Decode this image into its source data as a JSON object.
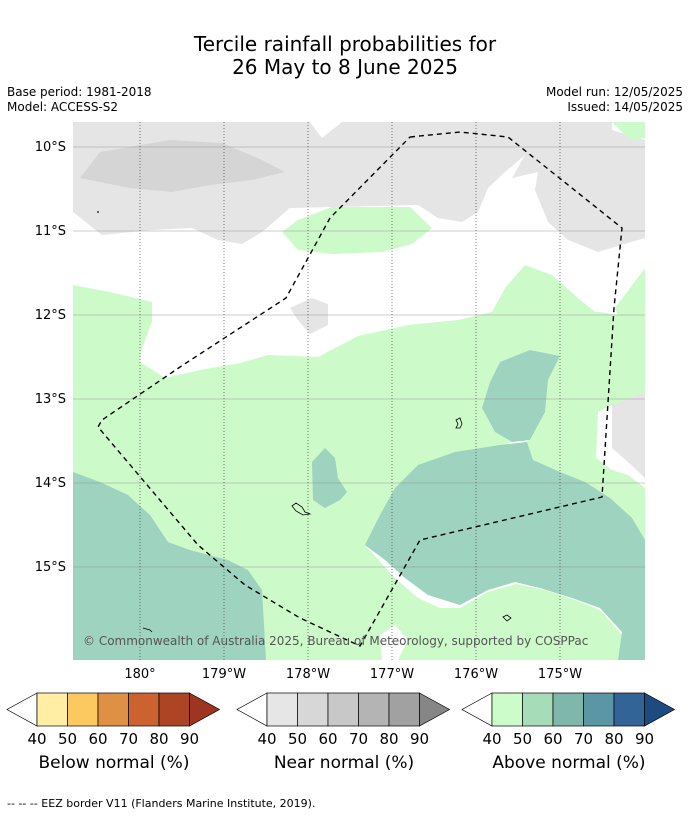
{
  "title": {
    "line1": "Tercile rainfall probabilities for",
    "line2": "26 May to 8 June 2025"
  },
  "meta": {
    "base_period": "Base period: 1981-2018",
    "model": "Model: ACCESS-S2",
    "model_run": "Model run: 12/05/2025",
    "issued": "Issued: 14/05/2025"
  },
  "map": {
    "lat_labels": [
      "10°S",
      "11°S",
      "12°S",
      "13°S",
      "14°S",
      "15°S"
    ],
    "lon_labels": [
      "180°",
      "179°W",
      "178°W",
      "177°W",
      "176°W",
      "175°W"
    ],
    "copyright": "© Commonwealth of Australia 2025, Bureau of Meteorology, supported by COSPPac",
    "colors": {
      "near_normal_40": "#e5e5e5",
      "near_normal_50": "#d5d5d5",
      "above_normal_40": "#ccfbc9",
      "above_normal_50": "#a6dbb9",
      "above_normal_60": "#9dd3bf"
    }
  },
  "legends": [
    {
      "name": "Below normal (%)",
      "ticks": [
        "40",
        "50",
        "60",
        "70",
        "80",
        "90"
      ],
      "colors": [
        "#ffeea3",
        "#fcc860",
        "#e09045",
        "#cc6230",
        "#ad4525",
        "#9d3520"
      ]
    },
    {
      "name": "Near normal (%)",
      "ticks": [
        "40",
        "50",
        "60",
        "70",
        "80",
        "90"
      ],
      "colors": [
        "#e6e6e6",
        "#d7d7d7",
        "#c8c8c8",
        "#b4b4b4",
        "#a1a1a1",
        "#868686"
      ]
    },
    {
      "name": "Above normal (%)",
      "ticks": [
        "40",
        "50",
        "60",
        "70",
        "80",
        "90"
      ],
      "colors": [
        "#ccfcc9",
        "#a7dcb8",
        "#7fb7ab",
        "#5a96a3",
        "#326497",
        "#1d4b80"
      ]
    }
  ],
  "footnote": "--  --  -- EEZ border V11 (Flanders Marine Institute, 2019)."
}
